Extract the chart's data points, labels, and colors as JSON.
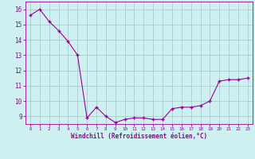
{
  "x": [
    0,
    1,
    2,
    3,
    4,
    5,
    6,
    7,
    8,
    9,
    10,
    11,
    12,
    13,
    14,
    15,
    16,
    17,
    18,
    19,
    20,
    21,
    22,
    23
  ],
  "y": [
    15.6,
    16.0,
    15.2,
    14.6,
    13.9,
    13.0,
    8.9,
    9.6,
    9.0,
    8.6,
    8.8,
    8.9,
    8.9,
    8.8,
    8.8,
    9.5,
    9.6,
    9.6,
    9.7,
    10.0,
    11.3,
    11.4,
    11.4,
    11.5
  ],
  "line_color": "#990099",
  "marker": "+",
  "bg_color": "#cff0f0",
  "grid_color": "#aacccc",
  "xlabel": "Windchill (Refroidissement éolien,°C)",
  "xlabel_color": "#990099",
  "ylim": [
    8.5,
    16.5
  ],
  "xlim": [
    -0.5,
    23.5
  ],
  "yticks": [
    9,
    10,
    11,
    12,
    13,
    14,
    15,
    16
  ],
  "xticks": [
    0,
    1,
    2,
    3,
    4,
    5,
    6,
    7,
    8,
    9,
    10,
    11,
    12,
    13,
    14,
    15,
    16,
    17,
    18,
    19,
    20,
    21,
    22,
    23
  ],
  "tick_color": "#990099",
  "axis_color": "#990099",
  "figsize": [
    3.2,
    2.0
  ],
  "dpi": 100
}
